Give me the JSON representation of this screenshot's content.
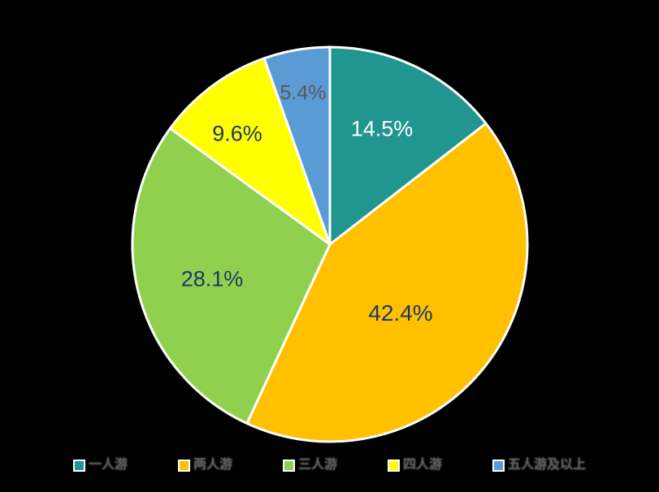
{
  "chart_data": {
    "type": "pie",
    "title": "",
    "start_angle_deg": 0,
    "direction": "clockwise",
    "legend_position": "bottom",
    "background_color": "#000000",
    "slice_border_color": "#FFFFFF",
    "legend_text_color": "#595959",
    "slices": [
      {
        "name": "一人游",
        "value": 14.5,
        "label": "14.5%",
        "color": "#21958F",
        "label_color": "#FFFFFF"
      },
      {
        "name": "两人游",
        "value": 42.4,
        "label": "42.4%",
        "color": "#FFC000",
        "label_color": "#1F3864"
      },
      {
        "name": "三人游",
        "value": 28.1,
        "label": "28.1%",
        "color": "#8FD14F",
        "label_color": "#1F3864"
      },
      {
        "name": "四人游",
        "value": 9.6,
        "label": "9.6%",
        "color": "#FFFF00",
        "label_color": "#1F3864"
      },
      {
        "name": "五人游及以上",
        "value": 5.4,
        "label": "5.4%",
        "color": "#5B9BD5",
        "label_color": "#595959"
      }
    ]
  }
}
